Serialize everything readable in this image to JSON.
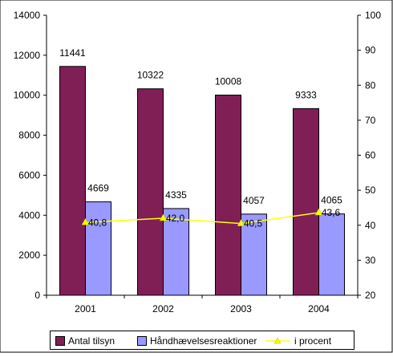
{
  "chart_data": {
    "type": "bar",
    "categories": [
      "2001",
      "2002",
      "2003",
      "2004"
    ],
    "series": [
      {
        "name": "Antal tilsyn",
        "values": [
          11441,
          10322,
          10008,
          9333
        ],
        "axis": "left",
        "kind": "bar",
        "color": "#7f1f56",
        "labels": [
          "11441",
          "10322",
          "10008",
          "9333"
        ]
      },
      {
        "name": "Håndhævelsesreaktioner",
        "values": [
          4669,
          4335,
          4057,
          4065
        ],
        "axis": "left",
        "kind": "bar",
        "color": "#9999ff",
        "labels": [
          "4669",
          "4335",
          "4057",
          "4065"
        ]
      },
      {
        "name": "i procent",
        "values": [
          40.8,
          42.0,
          40.5,
          43.6
        ],
        "axis": "right",
        "kind": "line",
        "color": "#ffff00",
        "labels": [
          "40,8",
          "42,0",
          "40,5",
          "43,6"
        ]
      }
    ],
    "y_left": {
      "min": 0,
      "max": 14000,
      "ticks": [
        "0",
        "2000",
        "4000",
        "6000",
        "8000",
        "10000",
        "12000",
        "14000"
      ]
    },
    "y_right": {
      "min": 20,
      "max": 100,
      "ticks": [
        "20",
        "30",
        "40",
        "50",
        "60",
        "70",
        "80",
        "90",
        "100"
      ]
    },
    "grid": false,
    "legend_position": "bottom"
  }
}
